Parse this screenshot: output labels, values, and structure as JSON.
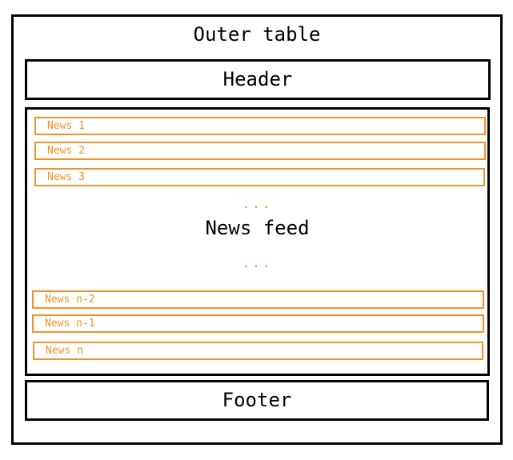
{
  "outer": {
    "title": "Outer table"
  },
  "header": {
    "label": "Header"
  },
  "feed": {
    "label": "News feed",
    "ellipsis_top": "...",
    "ellipsis_bottom": "...",
    "items_top": [
      "News 1",
      "News 2",
      "News 3"
    ],
    "items_bottom": [
      "News n-2",
      "News n-1",
      "News n"
    ]
  },
  "footer": {
    "label": "Footer"
  },
  "colors": {
    "border": "#000000",
    "accent": "#f0922a",
    "background": "#ffffff"
  }
}
